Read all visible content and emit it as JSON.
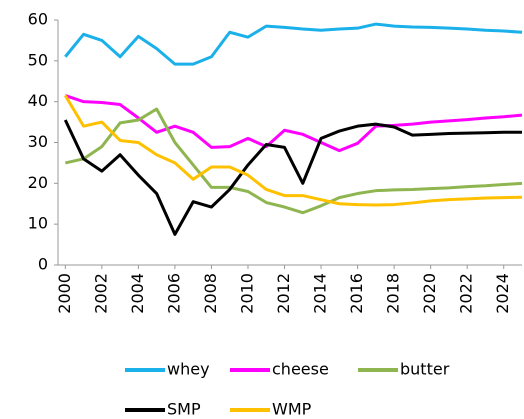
{
  "chart_data": {
    "type": "line",
    "x": [
      2000,
      2001,
      2002,
      2003,
      2004,
      2005,
      2006,
      2007,
      2008,
      2009,
      2010,
      2011,
      2012,
      2013,
      2014,
      2015,
      2016,
      2017,
      2018,
      2019,
      2020,
      2021,
      2022,
      2023,
      2024,
      2025
    ],
    "series": [
      {
        "name": "whey",
        "color": "#1ab0ea",
        "values": [
          51,
          56.5,
          55,
          51,
          56,
          53,
          49.2,
          49.2,
          51,
          57,
          55.8,
          58.5,
          58.2,
          57.8,
          57.5,
          57.8,
          58,
          59,
          58.5,
          58.3,
          58.2,
          58,
          57.8,
          57.5,
          57.3,
          57
        ]
      },
      {
        "name": "cheese",
        "color": "#ff00ff",
        "values": [
          41.5,
          40,
          39.8,
          39.3,
          36,
          32.5,
          34,
          32.5,
          28.8,
          29,
          31,
          29,
          33,
          32,
          30,
          28,
          29.8,
          34,
          34.2,
          34.5,
          35,
          35.3,
          35.6,
          36,
          36.3,
          36.7
        ]
      },
      {
        "name": "butter",
        "color": "#8fb550",
        "values": [
          25,
          26,
          29,
          34.8,
          35.5,
          38.2,
          30,
          24.5,
          19,
          19,
          18,
          15.3,
          14.2,
          12.8,
          14.5,
          16.5,
          17.5,
          18.2,
          18.4,
          18.5,
          18.7,
          18.9,
          19.2,
          19.4,
          19.7,
          20
        ]
      },
      {
        "name": "SMP",
        "color": "#000000",
        "values": [
          35.5,
          26,
          23,
          27,
          22,
          17.5,
          7.5,
          15.5,
          14.2,
          18.5,
          24.5,
          29.5,
          28.8,
          20,
          31,
          32.8,
          34,
          34.5,
          33.8,
          31.8,
          32,
          32.2,
          32.3,
          32.4,
          32.5,
          32.5
        ]
      },
      {
        "name": "WMP",
        "color": "#ffc000",
        "values": [
          41.5,
          34,
          35,
          30.5,
          30,
          27,
          25,
          21,
          24,
          24,
          22,
          18.5,
          17,
          17,
          16,
          15,
          14.8,
          14.7,
          14.8,
          15.2,
          15.7,
          16,
          16.2,
          16.4,
          16.5,
          16.6
        ]
      }
    ],
    "xlim": [
      1999.6,
      2025
    ],
    "xticks": [
      2000,
      2002,
      2004,
      2006,
      2008,
      2010,
      2012,
      2014,
      2016,
      2018,
      2020,
      2022,
      2024
    ],
    "ylim": [
      0,
      60
    ],
    "yticks": [
      0,
      10,
      20,
      30,
      40,
      50,
      60
    ]
  }
}
